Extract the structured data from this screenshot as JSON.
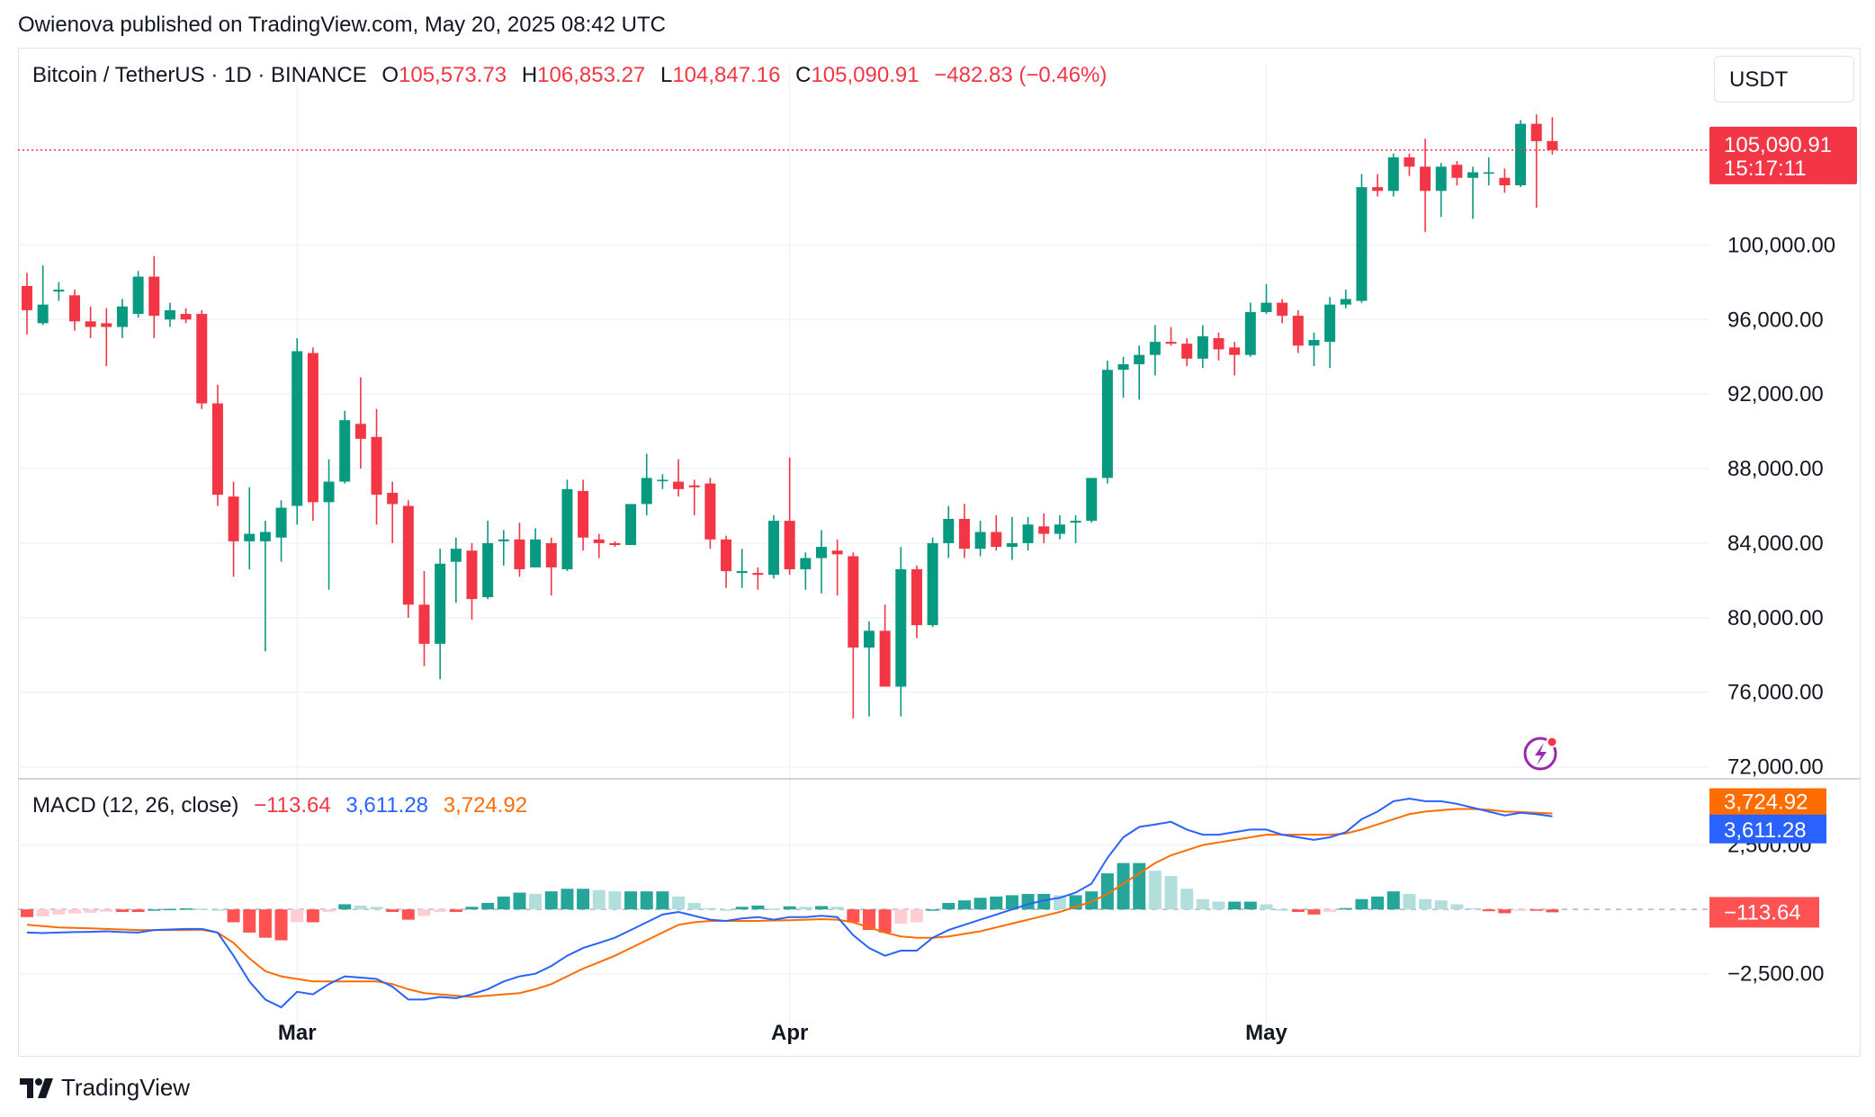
{
  "publish_line": "Owienova published on TradingView.com, May 20, 2025 08:42 UTC",
  "currency": "USDT",
  "brand": "TradingView",
  "colors": {
    "up": "#089981",
    "down": "#f23645",
    "macd_line": "#2962ff",
    "signal_line": "#ff6d00",
    "hist_up_strong": "#26a69a",
    "hist_up_weak": "#b2dfdb",
    "hist_down_strong": "#ff5252",
    "hist_down_weak": "#ffcdd2",
    "grid": "#f0f3fa"
  },
  "legend": {
    "symbol": "Bitcoin / TetherUS · 1D · BINANCE",
    "o_label": "O",
    "o_value": "105,573.73",
    "h_label": "H",
    "h_value": "106,853.27",
    "l_label": "L",
    "l_value": "104,847.16",
    "c_label": "C",
    "c_value": "105,090.91",
    "change": "−482.83 (−0.46%)"
  },
  "macd_legend": {
    "name": "MACD (12, 26, close)",
    "hist": "−113.64",
    "macd": "3,611.28",
    "signal": "3,724.92"
  },
  "price_tag": {
    "price": "105,090.91",
    "countdown": "15:17:11"
  },
  "macd_tags": {
    "signal": "3,724.92",
    "macd": "3,611.28",
    "hist": "−113.64"
  },
  "chart_data": [
    {
      "type": "candlestick",
      "title": "Bitcoin / TetherUS · 1D · BINANCE",
      "price_axis": {
        "ticks": [
          72000,
          76000,
          80000,
          84000,
          88000,
          92000,
          96000,
          100000
        ],
        "tick_labels": [
          "72,000.00",
          "76,000.00",
          "80,000.00",
          "84,000.00",
          "88,000.00",
          "92,000.00",
          "96,000.00",
          "100,000.00"
        ],
        "range": [
          71500,
          107400
        ],
        "grid": true
      },
      "time_axis": {
        "labels": [
          {
            "text": "Mar",
            "day": 17
          },
          {
            "text": "Apr",
            "day": 48
          },
          {
            "text": "May",
            "day": 78
          }
        ]
      },
      "candles": [
        {
          "o": 97800,
          "h": 98500,
          "l": 95200,
          "c": 96500
        },
        {
          "o": 95800,
          "h": 98900,
          "l": 95700,
          "c": 96800
        },
        {
          "o": 97500,
          "h": 98000,
          "l": 97000,
          "c": 97600
        },
        {
          "o": 97300,
          "h": 97600,
          "l": 95400,
          "c": 95900
        },
        {
          "o": 95900,
          "h": 96700,
          "l": 95000,
          "c": 95600
        },
        {
          "o": 95800,
          "h": 96600,
          "l": 93500,
          "c": 95600
        },
        {
          "o": 95600,
          "h": 97100,
          "l": 95000,
          "c": 96700
        },
        {
          "o": 96300,
          "h": 98600,
          "l": 96100,
          "c": 98300
        },
        {
          "o": 98300,
          "h": 99400,
          "l": 95000,
          "c": 96200
        },
        {
          "o": 96000,
          "h": 96900,
          "l": 95600,
          "c": 96500
        },
        {
          "o": 96300,
          "h": 96600,
          "l": 95800,
          "c": 96000
        },
        {
          "o": 96300,
          "h": 96500,
          "l": 91200,
          "c": 91500
        },
        {
          "o": 91500,
          "h": 92500,
          "l": 86000,
          "c": 86600
        },
        {
          "o": 86500,
          "h": 87300,
          "l": 82200,
          "c": 84100
        },
        {
          "o": 84100,
          "h": 87000,
          "l": 82600,
          "c": 84500
        },
        {
          "o": 84100,
          "h": 85200,
          "l": 78200,
          "c": 84600
        },
        {
          "o": 84300,
          "h": 86300,
          "l": 83000,
          "c": 85900
        },
        {
          "o": 86000,
          "h": 95000,
          "l": 85000,
          "c": 94300
        },
        {
          "o": 94200,
          "h": 94500,
          "l": 85200,
          "c": 86200
        },
        {
          "o": 86200,
          "h": 88500,
          "l": 81500,
          "c": 87300
        },
        {
          "o": 87300,
          "h": 91100,
          "l": 87200,
          "c": 90600
        },
        {
          "o": 90400,
          "h": 92900,
          "l": 88000,
          "c": 89600
        },
        {
          "o": 89700,
          "h": 91200,
          "l": 85000,
          "c": 86600
        },
        {
          "o": 86700,
          "h": 87300,
          "l": 84000,
          "c": 86100
        },
        {
          "o": 86000,
          "h": 86300,
          "l": 80000,
          "c": 80700
        },
        {
          "o": 80700,
          "h": 82500,
          "l": 77400,
          "c": 78600
        },
        {
          "o": 78600,
          "h": 83700,
          "l": 76700,
          "c": 82900
        },
        {
          "o": 83000,
          "h": 84300,
          "l": 80800,
          "c": 83700
        },
        {
          "o": 83600,
          "h": 84000,
          "l": 79900,
          "c": 81000
        },
        {
          "o": 81100,
          "h": 85200,
          "l": 81000,
          "c": 84000
        },
        {
          "o": 84100,
          "h": 84700,
          "l": 82800,
          "c": 84200
        },
        {
          "o": 84200,
          "h": 85100,
          "l": 82200,
          "c": 82600
        },
        {
          "o": 82700,
          "h": 84800,
          "l": 82700,
          "c": 84200
        },
        {
          "o": 84000,
          "h": 84300,
          "l": 81200,
          "c": 82700
        },
        {
          "o": 82600,
          "h": 87400,
          "l": 82500,
          "c": 86900
        },
        {
          "o": 86800,
          "h": 87400,
          "l": 83600,
          "c": 84300
        },
        {
          "o": 84200,
          "h": 84500,
          "l": 83200,
          "c": 84000
        },
        {
          "o": 84000,
          "h": 84100,
          "l": 83800,
          "c": 83900
        },
        {
          "o": 83900,
          "h": 86000,
          "l": 83900,
          "c": 86100
        },
        {
          "o": 86100,
          "h": 88800,
          "l": 85500,
          "c": 87500
        },
        {
          "o": 87400,
          "h": 87700,
          "l": 86900,
          "c": 87400
        },
        {
          "o": 87300,
          "h": 88500,
          "l": 86500,
          "c": 86900
        },
        {
          "o": 87100,
          "h": 87400,
          "l": 85500,
          "c": 87000
        },
        {
          "o": 87200,
          "h": 87500,
          "l": 83700,
          "c": 84200
        },
        {
          "o": 84200,
          "h": 84400,
          "l": 81600,
          "c": 82500
        },
        {
          "o": 82400,
          "h": 83700,
          "l": 81600,
          "c": 82500
        },
        {
          "o": 82400,
          "h": 82700,
          "l": 81500,
          "c": 82300
        },
        {
          "o": 82300,
          "h": 85500,
          "l": 82100,
          "c": 85200
        },
        {
          "o": 85200,
          "h": 88600,
          "l": 82300,
          "c": 82600
        },
        {
          "o": 82600,
          "h": 83500,
          "l": 81500,
          "c": 83200
        },
        {
          "o": 83200,
          "h": 84700,
          "l": 81300,
          "c": 83800
        },
        {
          "o": 83600,
          "h": 84200,
          "l": 81200,
          "c": 83400
        },
        {
          "o": 83300,
          "h": 83500,
          "l": 74600,
          "c": 78400
        },
        {
          "o": 78400,
          "h": 79800,
          "l": 74700,
          "c": 79300
        },
        {
          "o": 79300,
          "h": 80700,
          "l": 76300,
          "c": 76300
        },
        {
          "o": 76300,
          "h": 83800,
          "l": 74700,
          "c": 82600
        },
        {
          "o": 82600,
          "h": 82800,
          "l": 78900,
          "c": 79600
        },
        {
          "o": 79600,
          "h": 84300,
          "l": 79500,
          "c": 84000
        },
        {
          "o": 84000,
          "h": 86000,
          "l": 83200,
          "c": 85300
        },
        {
          "o": 85300,
          "h": 86100,
          "l": 83200,
          "c": 83700
        },
        {
          "o": 83700,
          "h": 85200,
          "l": 83300,
          "c": 84600
        },
        {
          "o": 84600,
          "h": 85500,
          "l": 83600,
          "c": 83800
        },
        {
          "o": 83800,
          "h": 85400,
          "l": 83100,
          "c": 84000
        },
        {
          "o": 84000,
          "h": 85400,
          "l": 83600,
          "c": 85000
        },
        {
          "o": 84900,
          "h": 85600,
          "l": 84000,
          "c": 84500
        },
        {
          "o": 84500,
          "h": 85500,
          "l": 84200,
          "c": 85000
        },
        {
          "o": 85100,
          "h": 85500,
          "l": 84000,
          "c": 85200
        },
        {
          "o": 85200,
          "h": 87500,
          "l": 85100,
          "c": 87500
        },
        {
          "o": 87500,
          "h": 93800,
          "l": 87200,
          "c": 93300
        },
        {
          "o": 93300,
          "h": 94000,
          "l": 91800,
          "c": 93600
        },
        {
          "o": 93600,
          "h": 94600,
          "l": 91700,
          "c": 94100
        },
        {
          "o": 94100,
          "h": 95700,
          "l": 93000,
          "c": 94800
        },
        {
          "o": 94800,
          "h": 95600,
          "l": 94600,
          "c": 94700
        },
        {
          "o": 94700,
          "h": 95000,
          "l": 93500,
          "c": 93900
        },
        {
          "o": 93900,
          "h": 95700,
          "l": 93400,
          "c": 95100
        },
        {
          "o": 95000,
          "h": 95300,
          "l": 93800,
          "c": 94400
        },
        {
          "o": 94500,
          "h": 94800,
          "l": 93000,
          "c": 94100
        },
        {
          "o": 94100,
          "h": 96900,
          "l": 94000,
          "c": 96400
        },
        {
          "o": 96400,
          "h": 97900,
          "l": 96300,
          "c": 96900
        },
        {
          "o": 96900,
          "h": 97100,
          "l": 95800,
          "c": 96200
        },
        {
          "o": 96200,
          "h": 96500,
          "l": 94200,
          "c": 94600
        },
        {
          "o": 94600,
          "h": 95300,
          "l": 93500,
          "c": 94900
        },
        {
          "o": 94800,
          "h": 97200,
          "l": 93400,
          "c": 96800
        },
        {
          "o": 96800,
          "h": 97600,
          "l": 96600,
          "c": 97100
        },
        {
          "o": 97000,
          "h": 103800,
          "l": 96900,
          "c": 103100
        },
        {
          "o": 103100,
          "h": 103800,
          "l": 102600,
          "c": 102900
        },
        {
          "o": 102900,
          "h": 104900,
          "l": 102600,
          "c": 104700
        },
        {
          "o": 104700,
          "h": 104900,
          "l": 103700,
          "c": 104200
        },
        {
          "o": 104200,
          "h": 105700,
          "l": 100700,
          "c": 102900
        },
        {
          "o": 102900,
          "h": 104400,
          "l": 101500,
          "c": 104200
        },
        {
          "o": 104300,
          "h": 104500,
          "l": 103200,
          "c": 103600
        },
        {
          "o": 103600,
          "h": 104200,
          "l": 101400,
          "c": 103900
        },
        {
          "o": 103900,
          "h": 104700,
          "l": 103200,
          "c": 103900
        },
        {
          "o": 103600,
          "h": 104100,
          "l": 102800,
          "c": 103200
        },
        {
          "o": 103200,
          "h": 106700,
          "l": 103100,
          "c": 106500
        },
        {
          "o": 106500,
          "h": 107000,
          "l": 102000,
          "c": 105570
        },
        {
          "o": 105573.73,
          "h": 106853.27,
          "l": 104847.16,
          "c": 105090.91
        }
      ]
    },
    {
      "type": "bar",
      "title": "MACD (12, 26, close)",
      "value_axis": {
        "ticks": [
          -2500,
          2500
        ],
        "tick_labels": [
          "−2,500.00",
          "2,500.00"
        ],
        "range": [
          -4500,
          5000
        ]
      },
      "zero_line": true,
      "series": [
        {
          "name": "MACD",
          "values": [
            -900,
            -920,
            -900,
            -880,
            -870,
            -850,
            -880,
            -900,
            -800,
            -780,
            -760,
            -760,
            -900,
            -1800,
            -2800,
            -3500,
            -3800,
            -3200,
            -3300,
            -2900,
            -2600,
            -2650,
            -2700,
            -3000,
            -3500,
            -3500,
            -3400,
            -3450,
            -3300,
            -3100,
            -2800,
            -2600,
            -2500,
            -2200,
            -1800,
            -1500,
            -1300,
            -1100,
            -800,
            -500,
            -200,
            -100,
            -250,
            -400,
            -450,
            -350,
            -300,
            -400,
            -300,
            -300,
            -250,
            -300,
            -1000,
            -1500,
            -1800,
            -1600,
            -1600,
            -1100,
            -800,
            -600,
            -400,
            -200,
            0,
            200,
            350,
            450,
            650,
            1000,
            2000,
            2800,
            3200,
            3300,
            3400,
            3100,
            2900,
            2900,
            3000,
            3100,
            3100,
            2900,
            2800,
            2700,
            2800,
            3000,
            3500,
            3800,
            4200,
            4300,
            4200,
            4200,
            4100,
            3950,
            3800,
            3650,
            3750,
            3700,
            3611.28
          ]
        },
        {
          "name": "Signal",
          "values": [
            -600,
            -650,
            -700,
            -720,
            -740,
            -760,
            -780,
            -800,
            -800,
            -800,
            -800,
            -790,
            -900,
            -1300,
            -1900,
            -2400,
            -2600,
            -2700,
            -2800,
            -2800,
            -2800,
            -2800,
            -2800,
            -2900,
            -3100,
            -3250,
            -3300,
            -3350,
            -3400,
            -3350,
            -3300,
            -3250,
            -3100,
            -2900,
            -2600,
            -2300,
            -2050,
            -1800,
            -1500,
            -1200,
            -900,
            -600,
            -500,
            -450,
            -450,
            -450,
            -450,
            -430,
            -420,
            -400,
            -380,
            -400,
            -500,
            -700,
            -900,
            -1050,
            -1100,
            -1100,
            -1050,
            -950,
            -850,
            -700,
            -550,
            -400,
            -250,
            -100,
            100,
            300,
            600,
            1000,
            1400,
            1800,
            2100,
            2300,
            2500,
            2600,
            2700,
            2800,
            2900,
            2900,
            2900,
            2900,
            2900,
            2950,
            3100,
            3300,
            3500,
            3700,
            3800,
            3850,
            3900,
            3900,
            3870,
            3800,
            3780,
            3750,
            3724.92
          ]
        },
        {
          "name": "Histogram",
          "values": [
            -300,
            -270,
            -200,
            -160,
            -130,
            -90,
            -100,
            -100,
            0,
            20,
            40,
            30,
            0,
            -500,
            -900,
            -1100,
            -1200,
            -500,
            -500,
            -100,
            200,
            150,
            100,
            -100,
            -400,
            -250,
            -100,
            -100,
            100,
            250,
            500,
            650,
            600,
            700,
            800,
            800,
            750,
            700,
            700,
            700,
            700,
            500,
            250,
            50,
            0,
            100,
            150,
            30,
            120,
            100,
            130,
            100,
            -500,
            -800,
            -900,
            -550,
            -500,
            0,
            250,
            350,
            450,
            500,
            550,
            600,
            600,
            550,
            550,
            700,
            1400,
            1800,
            1800,
            1500,
            1300,
            800,
            400,
            300,
            300,
            300,
            200,
            0,
            -100,
            -200,
            -100,
            50,
            400,
            500,
            700,
            600,
            400,
            350,
            200,
            50,
            -70,
            -150,
            -30,
            -50,
            -113.64
          ]
        }
      ]
    }
  ]
}
